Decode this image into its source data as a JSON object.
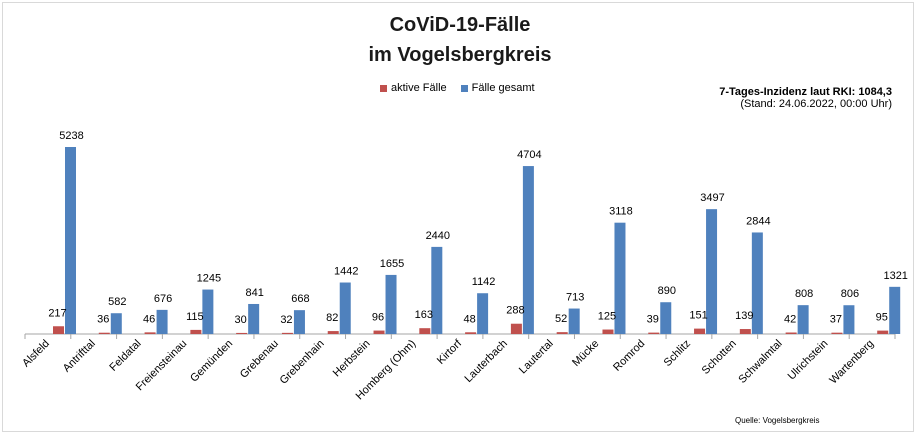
{
  "title_line1": "CoViD-19-Fälle",
  "title_line2": "im Vogelsbergkreis",
  "incidence_line": "7-Tages-Inzidenz laut RKI: 1084,3",
  "stand_line": "(Stand: 24.06.2022, 00:00 Uhr)",
  "source": "Quelle: Vogelsbergkreis",
  "colors": {
    "active": "#c0504d",
    "total": "#4f81bd",
    "axis": "#a6a6a6"
  },
  "chart_data": {
    "type": "bar",
    "title": "CoViD-19-Fälle im Vogelsbergkreis",
    "xlabel": "",
    "ylabel": "",
    "ylim": [
      0,
      5500
    ],
    "grid": false,
    "legend_position": "top",
    "categories": [
      "Alsfeld",
      "Antrifttal",
      "Feldatal",
      "Freiensteinau",
      "Gemünden",
      "Grebenau",
      "Grebenhain",
      "Herbstein",
      "Homberg (Ohm)",
      "Kirtorf",
      "Lauterbach",
      "Lautertal",
      "Mücke",
      "Romrod",
      "Schlitz",
      "Schotten",
      "Schwalmtal",
      "Ulrichstein",
      "Wartenberg"
    ],
    "series": [
      {
        "name": "aktive Fälle",
        "values": [
          217,
          36,
          46,
          115,
          30,
          32,
          82,
          96,
          163,
          48,
          288,
          52,
          125,
          39,
          151,
          139,
          42,
          37,
          95
        ]
      },
      {
        "name": "Fälle gesamt",
        "values": [
          5238,
          582,
          676,
          1245,
          841,
          668,
          1442,
          1655,
          2440,
          1142,
          4704,
          713,
          3118,
          890,
          3497,
          2844,
          808,
          806,
          1321
        ]
      }
    ]
  }
}
